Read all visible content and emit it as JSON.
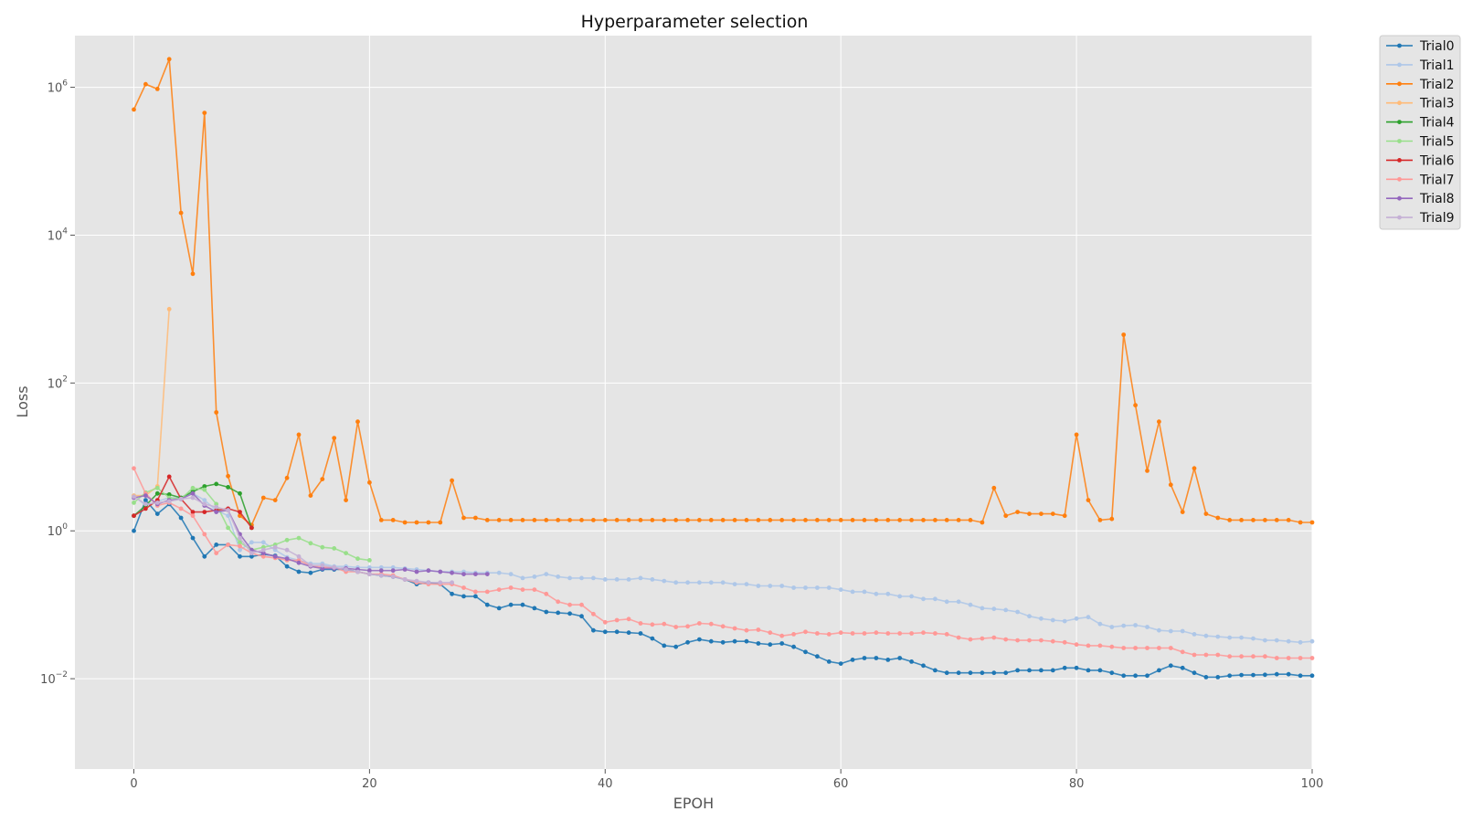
{
  "chart_data": {
    "type": "line",
    "title": "Hyperparameter selection",
    "xlabel": "EPOH",
    "ylabel": "Loss",
    "yscale": "log",
    "xlim": [
      -5,
      100
    ],
    "ylim": [
      0.0006,
      5000000
    ],
    "xticks": [
      0,
      20,
      40,
      60,
      80,
      100
    ],
    "yticks": [
      {
        "value": 0.01,
        "base": "10",
        "exp": "−2"
      },
      {
        "value": 1,
        "base": "10",
        "exp": "0"
      },
      {
        "value": 100,
        "base": "10",
        "exp": "2"
      },
      {
        "value": 10000,
        "base": "10",
        "exp": "4"
      },
      {
        "value": 1000000,
        "base": "10",
        "exp": "6"
      }
    ],
    "grid": true,
    "legend_position": "outside-top-right",
    "series": [
      {
        "name": "Trial0",
        "color": "#1f77b4",
        "y": [
          1.0,
          2.6,
          1.7,
          2.3,
          1.5,
          0.8,
          0.45,
          0.65,
          0.65,
          0.45,
          0.45,
          0.48,
          0.46,
          0.33,
          0.28,
          0.27,
          0.3,
          0.3,
          0.3,
          0.28,
          0.26,
          0.25,
          0.24,
          0.22,
          0.19,
          0.2,
          0.19,
          0.14,
          0.13,
          0.13,
          0.1,
          0.09,
          0.1,
          0.1,
          0.09,
          0.08,
          0.078,
          0.076,
          0.07,
          0.045,
          0.043,
          0.043,
          0.042,
          0.041,
          0.035,
          0.028,
          0.027,
          0.031,
          0.034,
          0.032,
          0.031,
          0.032,
          0.032,
          0.03,
          0.029,
          0.03,
          0.027,
          0.023,
          0.02,
          0.017,
          0.016,
          0.018,
          0.019,
          0.019,
          0.018,
          0.019,
          0.017,
          0.015,
          0.013,
          0.012,
          0.012,
          0.012,
          0.012,
          0.012,
          0.012,
          0.013,
          0.013,
          0.013,
          0.013,
          0.014,
          0.014,
          0.013,
          0.013,
          0.012,
          0.011,
          0.011,
          0.011,
          0.013,
          0.015,
          0.014,
          0.012,
          0.0105,
          0.0105,
          0.011,
          0.0112,
          0.0112,
          0.0113,
          0.0115,
          0.0115,
          0.011,
          0.011
        ]
      },
      {
        "name": "Trial1",
        "color": "#aec7e8",
        "y": [
          3.0,
          2.2,
          2.5,
          2.8,
          2.8,
          3.2,
          2.6,
          1.9,
          1.6,
          0.55,
          0.7,
          0.7,
          0.55,
          0.44,
          0.4,
          0.36,
          0.36,
          0.33,
          0.33,
          0.32,
          0.32,
          0.32,
          0.32,
          0.31,
          0.3,
          0.29,
          0.28,
          0.28,
          0.28,
          0.27,
          0.27,
          0.27,
          0.26,
          0.23,
          0.24,
          0.26,
          0.24,
          0.23,
          0.23,
          0.23,
          0.22,
          0.22,
          0.22,
          0.23,
          0.22,
          0.21,
          0.2,
          0.2,
          0.2,
          0.2,
          0.2,
          0.19,
          0.19,
          0.18,
          0.18,
          0.18,
          0.17,
          0.17,
          0.17,
          0.17,
          0.16,
          0.15,
          0.15,
          0.14,
          0.14,
          0.13,
          0.13,
          0.12,
          0.12,
          0.11,
          0.11,
          0.1,
          0.09,
          0.088,
          0.085,
          0.08,
          0.07,
          0.065,
          0.062,
          0.06,
          0.065,
          0.068,
          0.055,
          0.05,
          0.052,
          0.053,
          0.05,
          0.045,
          0.044,
          0.044,
          0.04,
          0.038,
          0.037,
          0.036,
          0.036,
          0.035,
          0.033,
          0.033,
          0.032,
          0.031,
          0.032
        ]
      },
      {
        "name": "Trial2",
        "color": "#ff7f0e",
        "y": [
          500000,
          1100000,
          950000,
          2400000,
          20000,
          3000,
          450000,
          40,
          5.5,
          1.6,
          1.2,
          2.8,
          2.6,
          5.2,
          20,
          3.0,
          5.0,
          18,
          2.6,
          30,
          4.5,
          1.4,
          1.4,
          1.3,
          1.3,
          1.3,
          1.3,
          4.8,
          1.5,
          1.5,
          1.4,
          1.4,
          1.4,
          1.4,
          1.4,
          1.4,
          1.4,
          1.4,
          1.4,
          1.4,
          1.4,
          1.4,
          1.4,
          1.4,
          1.4,
          1.4,
          1.4,
          1.4,
          1.4,
          1.4,
          1.4,
          1.4,
          1.4,
          1.4,
          1.4,
          1.4,
          1.4,
          1.4,
          1.4,
          1.4,
          1.4,
          1.4,
          1.4,
          1.4,
          1.4,
          1.4,
          1.4,
          1.4,
          1.4,
          1.4,
          1.4,
          1.4,
          1.3,
          3.8,
          1.6,
          1.8,
          1.7,
          1.7,
          1.7,
          1.6,
          20,
          2.6,
          1.4,
          1.45,
          450,
          50,
          6.5,
          30,
          4.2,
          1.8,
          7.0,
          1.7,
          1.5,
          1.4,
          1.4,
          1.4,
          1.4,
          1.4,
          1.4,
          1.3,
          1.3
        ]
      },
      {
        "name": "Trial3",
        "color": "#ffbb78",
        "y": [
          3.0,
          3.0,
          4.0,
          1000
        ]
      },
      {
        "name": "Trial4",
        "color": "#2ca02c",
        "y": [
          1.6,
          2.2,
          3.2,
          3.1,
          2.8,
          3.4,
          4.0,
          4.3,
          3.9,
          3.2,
          1.1
        ]
      },
      {
        "name": "Trial5",
        "color": "#98df8a",
        "y": [
          2.4,
          3.3,
          3.8,
          2.8,
          2.7,
          3.8,
          3.6,
          2.3,
          1.1,
          0.7,
          0.55,
          0.6,
          0.65,
          0.75,
          0.8,
          0.68,
          0.6,
          0.58,
          0.5,
          0.42,
          0.4
        ]
      },
      {
        "name": "Trial6",
        "color": "#d62728",
        "y": [
          1.6,
          2.0,
          2.6,
          5.4,
          2.7,
          1.8,
          1.8,
          1.9,
          2.0,
          1.8,
          1.1
        ]
      },
      {
        "name": "Trial7",
        "color": "#ff9896",
        "y": [
          7.0,
          3.2,
          2.2,
          2.4,
          2.0,
          1.6,
          0.9,
          0.5,
          0.65,
          0.62,
          0.5,
          0.45,
          0.43,
          0.4,
          0.4,
          0.34,
          0.32,
          0.32,
          0.28,
          0.28,
          0.26,
          0.26,
          0.25,
          0.22,
          0.2,
          0.19,
          0.19,
          0.19,
          0.17,
          0.15,
          0.15,
          0.16,
          0.17,
          0.16,
          0.16,
          0.14,
          0.11,
          0.1,
          0.1,
          0.075,
          0.058,
          0.062,
          0.064,
          0.056,
          0.054,
          0.055,
          0.05,
          0.051,
          0.056,
          0.055,
          0.051,
          0.048,
          0.045,
          0.046,
          0.042,
          0.038,
          0.04,
          0.043,
          0.041,
          0.04,
          0.042,
          0.041,
          0.041,
          0.042,
          0.041,
          0.041,
          0.041,
          0.042,
          0.041,
          0.04,
          0.036,
          0.034,
          0.035,
          0.036,
          0.034,
          0.033,
          0.033,
          0.033,
          0.032,
          0.031,
          0.029,
          0.028,
          0.028,
          0.027,
          0.026,
          0.026,
          0.026,
          0.026,
          0.026,
          0.023,
          0.021,
          0.021,
          0.021,
          0.02,
          0.02,
          0.02,
          0.02,
          0.019,
          0.019,
          0.019,
          0.019
        ]
      },
      {
        "name": "Trial8",
        "color": "#9467bd",
        "y": [
          2.8,
          3.0,
          2.3,
          2.6,
          2.7,
          3.2,
          2.2,
          1.8,
          1.9,
          0.9,
          0.55,
          0.5,
          0.45,
          0.42,
          0.37,
          0.33,
          0.31,
          0.31,
          0.31,
          0.3,
          0.29,
          0.29,
          0.29,
          0.3,
          0.28,
          0.29,
          0.28,
          0.27,
          0.26,
          0.26,
          0.26
        ]
      },
      {
        "name": "Trial9",
        "color": "#c5b0d5",
        "y": [
          2.9,
          2.3,
          2.4,
          2.5,
          2.7,
          2.8,
          2.3,
          2.1,
          1.9,
          0.8,
          0.5,
          0.55,
          0.6,
          0.55,
          0.45,
          0.34,
          0.34,
          0.32,
          0.3,
          0.28,
          0.26,
          0.25,
          0.24,
          0.22,
          0.21,
          0.2,
          0.2,
          0.2
        ]
      }
    ]
  }
}
